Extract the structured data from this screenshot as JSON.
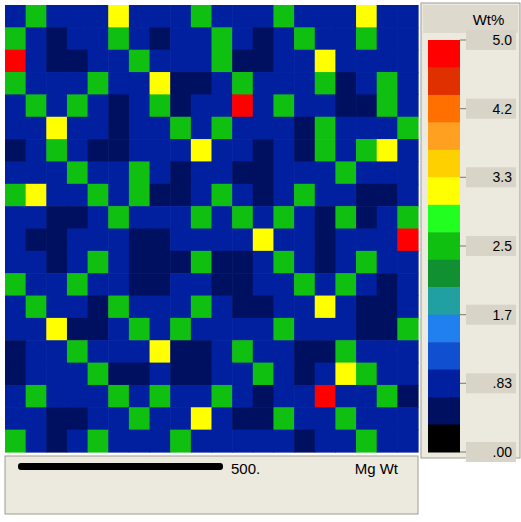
{
  "chart_data": {
    "type": "heatmap",
    "title": "Mg Wt",
    "scale_bar_label": "500.",
    "tick_labels": false,
    "cells": [
      [
        1.0,
        2.5,
        0.8,
        0.9,
        1.0,
        3.3,
        1.0,
        0.7,
        0.8,
        2.5,
        1.0,
        0.9,
        0.8,
        2.5,
        1.0,
        0.9,
        1.0,
        3.3,
        1.0,
        0.9
      ],
      [
        2.5,
        1.0,
        0.6,
        0.7,
        0.9,
        2.5,
        0.8,
        0.6,
        0.9,
        1.0,
        2.5,
        0.7,
        0.6,
        0.9,
        2.5,
        1.0,
        0.8,
        2.5,
        0.9,
        1.0
      ],
      [
        5.0,
        0.9,
        0.5,
        0.6,
        1.0,
        1.0,
        2.5,
        0.9,
        0.7,
        0.8,
        2.5,
        0.6,
        0.5,
        0.8,
        1.0,
        3.3,
        0.9,
        1.0,
        0.7,
        0.8
      ],
      [
        2.5,
        1.0,
        0.7,
        0.9,
        2.5,
        0.8,
        0.9,
        3.3,
        0.6,
        0.6,
        1.0,
        2.5,
        0.7,
        0.9,
        1.0,
        2.5,
        0.6,
        0.8,
        2.5,
        0.9
      ],
      [
        1.0,
        2.5,
        1.0,
        2.5,
        0.9,
        0.6,
        0.7,
        2.5,
        0.5,
        0.7,
        0.9,
        5.0,
        1.0,
        2.5,
        0.8,
        1.0,
        0.5,
        0.6,
        2.5,
        1.0
      ],
      [
        0.8,
        0.9,
        3.3,
        1.0,
        0.7,
        0.5,
        0.8,
        1.0,
        2.5,
        0.9,
        2.5,
        1.0,
        0.9,
        0.8,
        0.6,
        2.5,
        0.7,
        0.9,
        1.0,
        2.5
      ],
      [
        0.6,
        0.8,
        2.5,
        0.9,
        0.6,
        0.6,
        1.0,
        0.8,
        1.0,
        3.3,
        1.0,
        0.7,
        0.6,
        0.7,
        0.5,
        2.5,
        1.0,
        2.5,
        3.3,
        1.0
      ],
      [
        0.7,
        1.0,
        1.0,
        2.5,
        0.9,
        0.8,
        2.5,
        0.7,
        0.6,
        1.0,
        0.8,
        0.5,
        0.5,
        0.9,
        1.0,
        1.0,
        2.5,
        0.9,
        0.8,
        0.7
      ],
      [
        2.5,
        3.3,
        0.9,
        0.8,
        2.5,
        1.0,
        2.5,
        0.6,
        0.5,
        0.9,
        2.5,
        0.7,
        0.6,
        1.0,
        2.5,
        0.8,
        1.0,
        0.6,
        0.6,
        0.9
      ],
      [
        1.0,
        0.9,
        0.6,
        0.6,
        1.0,
        2.5,
        0.9,
        0.8,
        0.7,
        2.5,
        1.0,
        2.5,
        1.0,
        2.5,
        0.9,
        0.6,
        2.5,
        0.5,
        0.7,
        2.5
      ],
      [
        0.8,
        0.6,
        0.5,
        0.7,
        0.9,
        1.0,
        0.6,
        0.5,
        0.9,
        1.0,
        0.8,
        1.0,
        3.3,
        0.9,
        0.7,
        0.5,
        1.0,
        0.7,
        1.0,
        5.0
      ],
      [
        0.9,
        0.7,
        0.6,
        1.0,
        2.5,
        0.8,
        0.5,
        0.4,
        0.6,
        2.5,
        0.6,
        0.5,
        1.0,
        2.5,
        0.9,
        0.6,
        0.9,
        2.5,
        0.9,
        1.0
      ],
      [
        2.5,
        1.0,
        0.9,
        2.5,
        1.0,
        0.7,
        0.6,
        0.5,
        0.8,
        1.0,
        0.5,
        0.4,
        0.7,
        1.0,
        2.5,
        0.8,
        2.5,
        1.0,
        0.6,
        0.8
      ],
      [
        1.0,
        2.5,
        1.0,
        0.8,
        0.6,
        2.5,
        0.9,
        0.7,
        1.0,
        2.5,
        0.7,
        0.5,
        0.6,
        0.9,
        1.0,
        3.3,
        0.9,
        0.6,
        0.5,
        0.9
      ],
      [
        0.7,
        0.9,
        3.3,
        0.6,
        0.5,
        1.0,
        2.5,
        1.0,
        2.5,
        0.9,
        1.0,
        0.8,
        0.9,
        2.5,
        0.8,
        1.0,
        0.7,
        0.5,
        0.6,
        2.5
      ],
      [
        0.5,
        0.8,
        1.0,
        2.5,
        0.7,
        0.9,
        0.8,
        3.3,
        0.6,
        0.5,
        0.8,
        2.5,
        1.0,
        1.0,
        0.6,
        0.6,
        2.5,
        0.8,
        1.0,
        1.0
      ],
      [
        0.6,
        1.0,
        0.9,
        1.0,
        2.5,
        0.6,
        0.5,
        1.0,
        0.5,
        0.6,
        0.9,
        1.0,
        2.5,
        0.7,
        0.5,
        0.8,
        3.3,
        2.5,
        0.9,
        0.8
      ],
      [
        0.9,
        2.5,
        0.7,
        0.8,
        1.0,
        2.5,
        0.7,
        2.5,
        0.9,
        0.8,
        2.5,
        0.7,
        0.6,
        0.9,
        1.0,
        5.0,
        0.9,
        1.0,
        2.5,
        0.6
      ],
      [
        1.0,
        0.9,
        0.5,
        0.6,
        0.9,
        1.0,
        2.5,
        0.9,
        1.0,
        3.3,
        0.9,
        0.5,
        0.6,
        2.5,
        0.9,
        0.8,
        2.5,
        0.7,
        0.8,
        0.9
      ],
      [
        2.5,
        1.0,
        0.6,
        0.7,
        2.5,
        0.8,
        1.0,
        0.7,
        2.5,
        1.0,
        0.8,
        0.7,
        1.0,
        1.0,
        0.6,
        0.7,
        1.0,
        2.5,
        0.9,
        1.0
      ]
    ],
    "colorbar": {
      "title": "Wt%",
      "range": [
        0,
        5
      ],
      "ticks": [
        {
          "value": 5,
          "label": "5.0"
        },
        {
          "value": 4.2,
          "label": "4.2"
        },
        {
          "value": 3.3,
          "label": "3.3"
        },
        {
          "value": 2.5,
          "label": "2.5"
        },
        {
          "value": 1.7,
          "label": "1.7"
        },
        {
          "value": 0.83,
          "label": ".83"
        },
        {
          "value": 0,
          "label": ".00"
        }
      ],
      "colors": [
        "#ff0000",
        "#e03000",
        "#ff7000",
        "#ffa020",
        "#ffd000",
        "#ffff00",
        "#20ff20",
        "#10c010",
        "#109030",
        "#20a0a0",
        "#2080f0",
        "#1050d0",
        "#0020a0",
        "#001060",
        "#000000"
      ]
    }
  }
}
